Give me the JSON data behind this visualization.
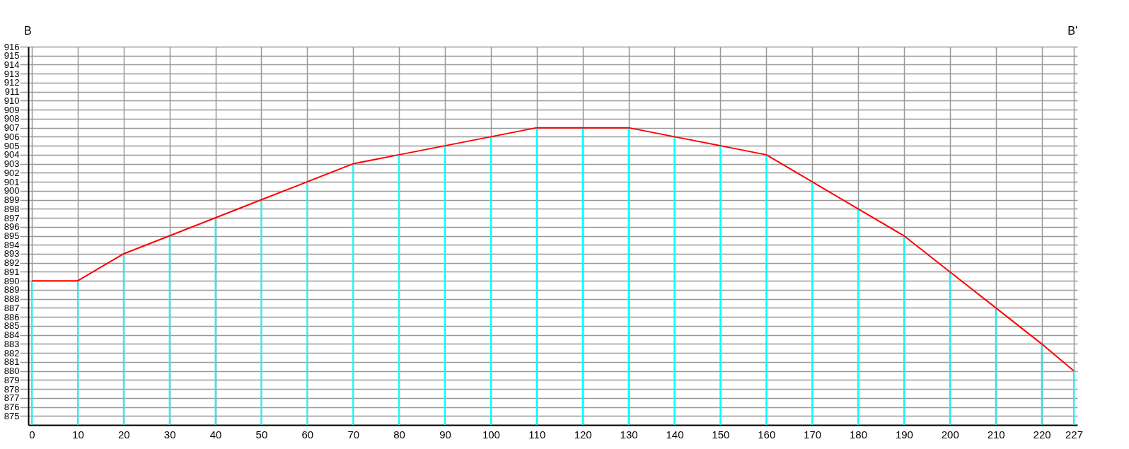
{
  "chart_data": {
    "type": "line",
    "x": [
      0,
      10,
      20,
      30,
      40,
      50,
      60,
      70,
      80,
      90,
      100,
      110,
      120,
      130,
      140,
      150,
      160,
      170,
      180,
      190,
      200,
      210,
      220,
      227
    ],
    "series": [
      {
        "type": "bar",
        "color": "#00ffff",
        "values": [
          890,
          890,
          893,
          895,
          897,
          899,
          901,
          903,
          904,
          905,
          906,
          907,
          907,
          907,
          906,
          905,
          904,
          901,
          898,
          895,
          891,
          887,
          883,
          880
        ]
      },
      {
        "color": "#ff0000",
        "values": [
          890,
          890,
          893,
          895,
          897,
          899,
          901,
          903,
          904,
          905,
          906,
          907,
          907,
          907,
          906,
          905,
          904,
          901,
          898,
          895,
          891,
          887,
          883,
          880
        ]
      }
    ],
    "xlim": [
      0,
      227
    ],
    "xticks": [
      0,
      10,
      20,
      30,
      40,
      50,
      60,
      70,
      80,
      90,
      100,
      110,
      120,
      130,
      140,
      150,
      160,
      170,
      180,
      190,
      200,
      210,
      220,
      227
    ],
    "ylim": [
      874,
      916
    ],
    "yticks": [
      875,
      876,
      877,
      878,
      879,
      880,
      881,
      882,
      883,
      884,
      885,
      886,
      887,
      888,
      889,
      890,
      891,
      892,
      893,
      894,
      895,
      896,
      897,
      898,
      899,
      900,
      901,
      902,
      903,
      904,
      905,
      906,
      907,
      908,
      909,
      910,
      911,
      912,
      913,
      914,
      915,
      916
    ],
    "grid": true,
    "annotations": [
      "B",
      "B'"
    ]
  }
}
